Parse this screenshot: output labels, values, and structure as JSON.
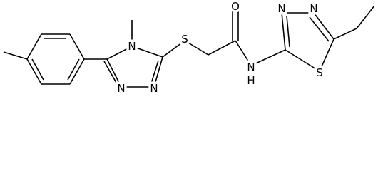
{
  "atoms": [
    "N",
    "N",
    "N",
    "S",
    "O",
    "N",
    "H",
    "N",
    "N",
    "S"
  ]
}
